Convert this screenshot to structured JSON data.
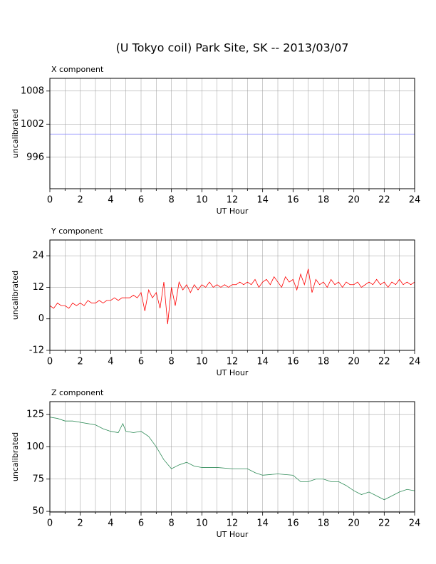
{
  "title": "(U Tokyo coil) Park Site, SK -- 2013/03/07",
  "chart_data": [
    {
      "type": "line",
      "title": "X component",
      "xlabel": "UT Hour",
      "ylabel": "uncalibrated",
      "xlim": [
        0,
        24
      ],
      "xticks": [
        0,
        2,
        4,
        6,
        8,
        10,
        12,
        14,
        16,
        18,
        20,
        22,
        24
      ],
      "x_minor_ticks": [
        1,
        3,
        5,
        7,
        9,
        11,
        13,
        15,
        17,
        19,
        21,
        23
      ],
      "ylim": [
        990.3,
        1010.3
      ],
      "yticks": [
        996,
        1002,
        1008
      ],
      "grid": true,
      "x": [
        0,
        24
      ],
      "series": [
        {
          "color": "#8080ff",
          "values": [
            1000.2,
            1000.2
          ]
        }
      ]
    },
    {
      "type": "line",
      "title": "Y component",
      "xlabel": "UT Hour",
      "ylabel": "uncalibrated",
      "xlim": [
        0,
        24
      ],
      "xticks": [
        0,
        2,
        4,
        6,
        8,
        10,
        12,
        14,
        16,
        18,
        20,
        22,
        24
      ],
      "x_minor_ticks": [
        1,
        3,
        5,
        7,
        9,
        11,
        13,
        15,
        17,
        19,
        21,
        23
      ],
      "ylim": [
        -12,
        30
      ],
      "yticks": [
        -12,
        0,
        12,
        24
      ],
      "grid": true,
      "x": [
        0,
        0.25,
        0.5,
        0.75,
        1,
        1.25,
        1.5,
        1.75,
        2,
        2.25,
        2.5,
        2.75,
        3,
        3.25,
        3.5,
        3.75,
        4,
        4.25,
        4.5,
        4.75,
        5,
        5.25,
        5.5,
        5.75,
        6,
        6.25,
        6.5,
        6.75,
        7,
        7.25,
        7.5,
        7.75,
        8,
        8.25,
        8.5,
        8.75,
        9,
        9.25,
        9.5,
        9.75,
        10,
        10.25,
        10.5,
        10.75,
        11,
        11.25,
        11.5,
        11.75,
        12,
        12.25,
        12.5,
        12.75,
        13,
        13.25,
        13.5,
        13.75,
        14,
        14.25,
        14.5,
        14.75,
        15,
        15.25,
        15.5,
        15.75,
        16,
        16.25,
        16.5,
        16.75,
        17,
        17.25,
        17.5,
        17.75,
        18,
        18.25,
        18.5,
        18.75,
        19,
        19.25,
        19.5,
        19.75,
        20,
        20.25,
        20.5,
        20.75,
        21,
        21.25,
        21.5,
        21.75,
        22,
        22.25,
        22.5,
        22.75,
        23,
        23.25,
        23.5,
        23.75,
        24
      ],
      "series": [
        {
          "color": "#ff0000",
          "values": [
            5,
            4,
            6,
            5,
            5,
            4,
            6,
            5,
            6,
            5,
            7,
            6,
            6,
            7,
            6,
            7,
            7,
            8,
            7,
            8,
            8,
            8,
            9,
            8,
            10,
            3,
            11,
            8,
            10,
            4,
            14,
            -2,
            12,
            5,
            14,
            11,
            13,
            10,
            13,
            11,
            13,
            12,
            14,
            12,
            13,
            12,
            13,
            12,
            13,
            13,
            14,
            13,
            14,
            13,
            15,
            12,
            14,
            15,
            13,
            16,
            14,
            12,
            16,
            14,
            15,
            11,
            17,
            13,
            19,
            10,
            15,
            13,
            14,
            12,
            15,
            13,
            14,
            12,
            14,
            13,
            13,
            14,
            12,
            13,
            14,
            13,
            15,
            13,
            14,
            12,
            14,
            13,
            15,
            13,
            14,
            13,
            14
          ]
        }
      ]
    },
    {
      "type": "line",
      "title": "Z component",
      "xlabel": "UT Hour",
      "ylabel": "uncalibrated",
      "xlim": [
        0,
        24
      ],
      "xticks": [
        0,
        2,
        4,
        6,
        8,
        10,
        12,
        14,
        16,
        18,
        20,
        22,
        24
      ],
      "x_minor_ticks": [
        1,
        3,
        5,
        7,
        9,
        11,
        13,
        15,
        17,
        19,
        21,
        23
      ],
      "ylim": [
        49.5,
        135
      ],
      "yticks": [
        50,
        75,
        100,
        125
      ],
      "grid": true,
      "x": [
        0,
        0.5,
        1,
        1.5,
        2,
        2.5,
        3,
        3.5,
        4,
        4.5,
        4.8,
        5,
        5.5,
        6,
        6.5,
        7,
        7.5,
        8,
        8.5,
        9,
        9.5,
        10,
        11,
        12,
        13,
        13.5,
        14,
        15,
        16,
        16.5,
        17,
        17.5,
        18,
        18.5,
        19,
        19.5,
        20,
        20.5,
        21,
        21.5,
        22,
        22.5,
        23,
        23.5,
        24
      ],
      "series": [
        {
          "color": "#2e8b57",
          "values": [
            123,
            122,
            120,
            120,
            119,
            118,
            117,
            114,
            112,
            111,
            118,
            112,
            111,
            112,
            108,
            100,
            90,
            83,
            86,
            88,
            85,
            84,
            84,
            83,
            83,
            80,
            78,
            79,
            78,
            73,
            73,
            75,
            75,
            73,
            73,
            70,
            66,
            63,
            65,
            62,
            59,
            62,
            65,
            67,
            66
          ]
        }
      ]
    }
  ]
}
